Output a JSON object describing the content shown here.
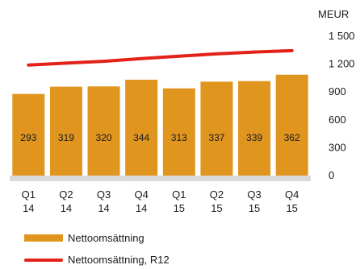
{
  "chart_data": {
    "type": "bar",
    "unit_label": "MEUR",
    "categories": [
      [
        "Q1",
        "14"
      ],
      [
        "Q2",
        "14"
      ],
      [
        "Q3",
        "14"
      ],
      [
        "Q4",
        "14"
      ],
      [
        "Q1",
        "15"
      ],
      [
        "Q2",
        "15"
      ],
      [
        "Q3",
        "15"
      ],
      [
        "Q4",
        "15"
      ]
    ],
    "series": [
      {
        "name": "Nettoomsättning",
        "type": "bar",
        "color": "#e0951f",
        "values": [
          293,
          319,
          320,
          344,
          313,
          337,
          339,
          362
        ]
      },
      {
        "name": "Nettoomsättning, R12",
        "type": "line",
        "color": "#e32119",
        "values": [
          1190,
          1210,
          1230,
          1260,
          1285,
          1310,
          1330,
          1345
        ]
      }
    ],
    "y_ticks": [
      "0",
      "300",
      "600",
      "900",
      "1 200",
      "1 500"
    ],
    "y_tick_values": [
      0,
      300,
      600,
      900,
      1200,
      1500
    ],
    "bar_scale_max": 500,
    "line_scale_max": 1500
  },
  "colors": {
    "bar": "#e0951f",
    "line": "#e32119",
    "axis_band": "#d9d9d9"
  }
}
